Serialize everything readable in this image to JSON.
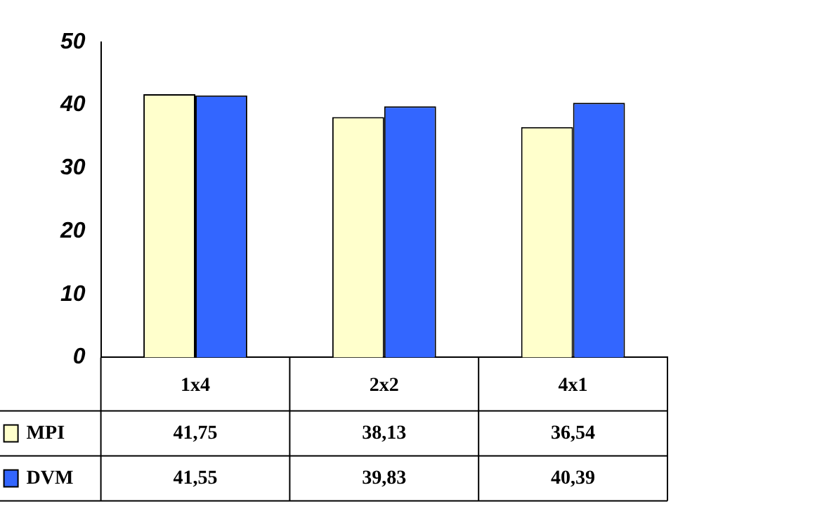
{
  "chart_data": {
    "type": "bar",
    "categories": [
      "1x4",
      "2x2",
      "4x1"
    ],
    "series": [
      {
        "name": "MPI",
        "color": "#ffffcc",
        "values": [
          41.75,
          38.13,
          36.54
        ],
        "value_labels": [
          "41,75",
          "38,13",
          "36,54"
        ]
      },
      {
        "name": "DVM",
        "color": "#3366ff",
        "values": [
          41.55,
          39.83,
          40.39
        ],
        "value_labels": [
          "41,55",
          "39,83",
          "40,39"
        ]
      }
    ],
    "ylim": [
      0,
      50
    ],
    "yticks": [
      0,
      10,
      20,
      30,
      40,
      50
    ],
    "grid": false,
    "legend": "bottom"
  }
}
